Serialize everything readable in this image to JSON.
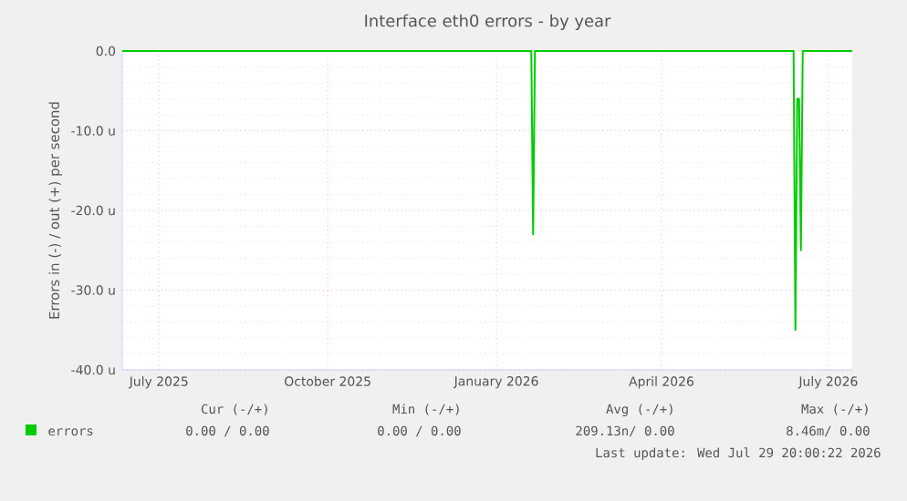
{
  "chart_data": {
    "type": "line",
    "title": "Interface eth0 errors - by year",
    "ylabel": "Errors in (-) / out (+) per second",
    "series": [
      {
        "name": "errors",
        "color": "#00cc00",
        "x": [
          "2025-06-26",
          "2026-02-04",
          "2026-02-05",
          "2026-02-06",
          "2026-06-27",
          "2026-06-28",
          "2026-06-29",
          "2026-06-30",
          "2026-07-01",
          "2026-07-02",
          "2026-07-29"
        ],
        "values": [
          0,
          0,
          -23,
          0,
          0,
          -35,
          -6,
          -6,
          -25,
          0,
          0
        ]
      }
    ],
    "xlim": [
      "2025-06-26",
      "2026-07-29"
    ],
    "xticks": [
      {
        "value": "2025-07-16",
        "label": "July 2025"
      },
      {
        "value": "2025-10-16",
        "label": "October 2025"
      },
      {
        "value": "2026-01-16",
        "label": "January 2026"
      },
      {
        "value": "2026-04-16",
        "label": "April 2026"
      },
      {
        "value": "2026-07-16",
        "label": "July 2026"
      }
    ],
    "ylim": [
      -40,
      0
    ],
    "yticks": [
      {
        "value": -40,
        "label": "-40.0 u"
      },
      {
        "value": -30,
        "label": "-30.0 u"
      },
      {
        "value": -20,
        "label": "-20.0 u"
      },
      {
        "value": -10,
        "label": "-10.0 u"
      },
      {
        "value": 0,
        "label": "0.0"
      }
    ],
    "grid": true,
    "legend": "bottom",
    "marker": "none",
    "line_style": "solid",
    "annotations": [
      "Cur (-/+)",
      "Min (-/+)",
      "Avg (-/+)",
      "Max (-/+)",
      "0.00 /  0.00",
      "0.00 /  0.00",
      "209.13n/  0.00",
      "8.46m/  0.00",
      "Last update: Wed Jul 29 20:00:22 2026"
    ]
  }
}
